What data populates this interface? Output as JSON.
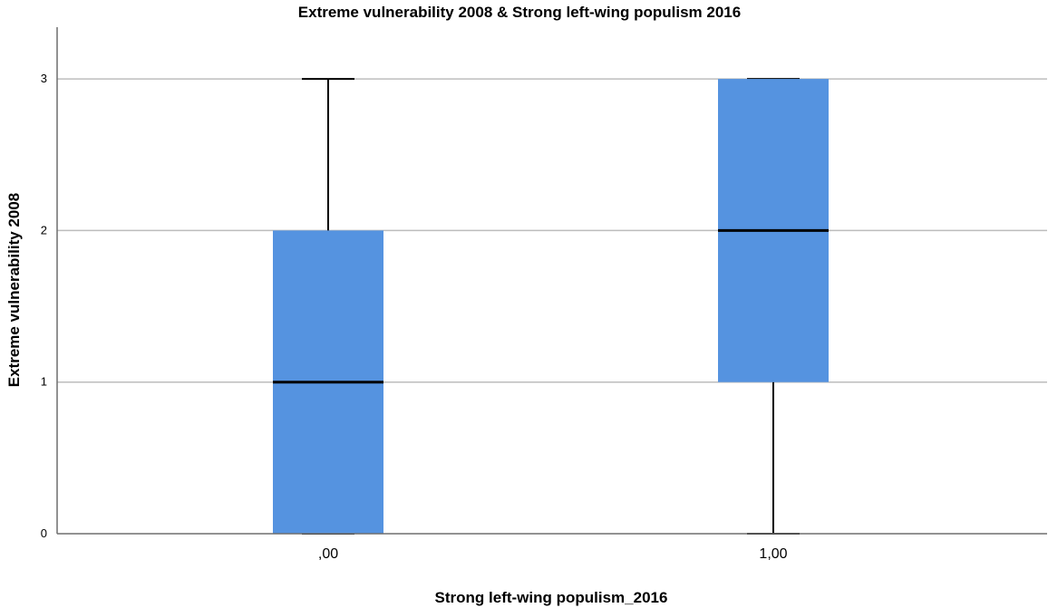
{
  "chart_data": {
    "type": "boxplot",
    "title": "Extreme vulnerability 2008 & Strong left-wing populism 2016",
    "xlabel": "Strong left-wing populism_2016",
    "ylabel": "Extreme vulnerability 2008",
    "categories": [
      ",00",
      "1,00"
    ],
    "yticks": [
      "0",
      "1",
      "2",
      "3"
    ],
    "ylim": [
      0,
      3.33
    ],
    "grid": true,
    "box_color": "#5593e0",
    "boxes": [
      {
        "category": ",00",
        "min": 0,
        "q1": 0,
        "median": 1,
        "q3": 2,
        "max": 3
      },
      {
        "category": "1,00",
        "min": 0,
        "q1": 1,
        "median": 2,
        "q3": 3,
        "max": 3
      }
    ]
  }
}
